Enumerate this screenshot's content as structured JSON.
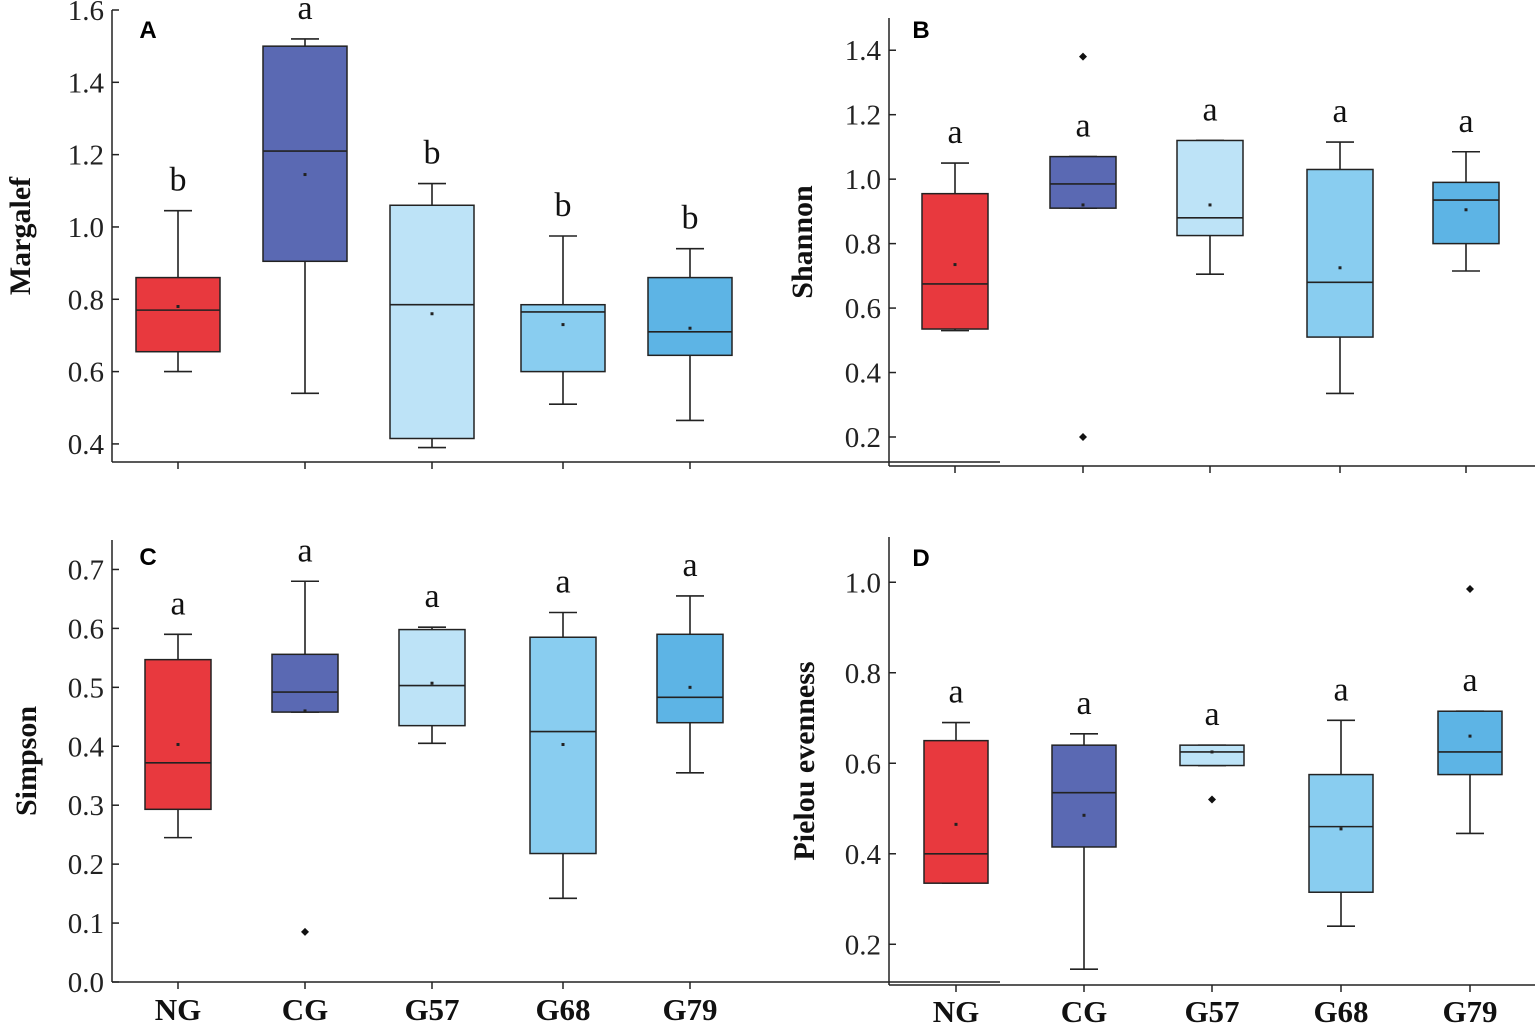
{
  "chart_data": [
    {
      "panel": "A",
      "type": "box",
      "ylabel": "Margalef",
      "ylim": [
        0.35,
        1.6
      ],
      "yticks": [
        "0.4",
        "0.6",
        "0.8",
        "1.0",
        "1.2",
        "1.4",
        "1.6"
      ],
      "categories": [
        "NG",
        "CG",
        "G57",
        "G68",
        "G79"
      ],
      "boxes": [
        {
          "group": "NG",
          "min": 0.6,
          "q1": 0.655,
          "median": 0.77,
          "q3": 0.86,
          "max": 1.045,
          "mean": 0.78,
          "outliers": [],
          "sig": "b"
        },
        {
          "group": "CG",
          "min": 0.54,
          "q1": 0.905,
          "median": 1.21,
          "q3": 1.5,
          "max": 1.52,
          "mean": 1.145,
          "outliers": [],
          "sig": "a"
        },
        {
          "group": "G57",
          "min": 0.39,
          "q1": 0.415,
          "median": 0.785,
          "q3": 1.06,
          "max": 1.12,
          "mean": 0.76,
          "outliers": [],
          "sig": "b"
        },
        {
          "group": "G68",
          "min": 0.51,
          "q1": 0.6,
          "median": 0.765,
          "q3": 0.785,
          "max": 0.975,
          "mean": 0.73,
          "outliers": [],
          "sig": "b"
        },
        {
          "group": "G79",
          "min": 0.465,
          "q1": 0.645,
          "median": 0.71,
          "q3": 0.86,
          "max": 0.94,
          "mean": 0.72,
          "outliers": [],
          "sig": "b"
        }
      ]
    },
    {
      "panel": "B",
      "type": "box",
      "ylabel": "Shannon",
      "ylim": [
        0.11,
        1.5
      ],
      "yticks": [
        "0.2",
        "0.4",
        "0.6",
        "0.8",
        "1.0",
        "1.2",
        "1.4"
      ],
      "categories": [
        "NG",
        "CG",
        "G57",
        "G68",
        "G79"
      ],
      "boxes": [
        {
          "group": "NG",
          "min": 0.53,
          "q1": 0.535,
          "median": 0.675,
          "q3": 0.955,
          "max": 1.05,
          "mean": 0.735,
          "outliers": [],
          "sig": "a"
        },
        {
          "group": "CG",
          "min": 0.91,
          "q1": 0.91,
          "median": 0.985,
          "q3": 1.07,
          "max": 1.07,
          "mean": 0.92,
          "outliers": [
            1.38,
            0.2
          ],
          "sig": "a"
        },
        {
          "group": "G57",
          "min": 0.705,
          "q1": 0.825,
          "median": 0.88,
          "q3": 1.12,
          "max": 1.12,
          "mean": 0.92,
          "outliers": [],
          "sig": "a"
        },
        {
          "group": "G68",
          "min": 0.335,
          "q1": 0.51,
          "median": 0.68,
          "q3": 1.03,
          "max": 1.115,
          "mean": 0.725,
          "outliers": [],
          "sig": "a"
        },
        {
          "group": "G79",
          "min": 0.715,
          "q1": 0.8,
          "median": 0.935,
          "q3": 0.99,
          "max": 1.085,
          "mean": 0.905,
          "outliers": [],
          "sig": "a"
        }
      ]
    },
    {
      "panel": "C",
      "type": "box",
      "ylabel": "Simpson",
      "ylim": [
        0.0,
        0.75
      ],
      "yticks": [
        "0.0",
        "0.1",
        "0.2",
        "0.3",
        "0.4",
        "0.5",
        "0.6",
        "0.7"
      ],
      "categories": [
        "NG",
        "CG",
        "G57",
        "G68",
        "G79"
      ],
      "boxes": [
        {
          "group": "NG",
          "min": 0.245,
          "q1": 0.293,
          "median": 0.372,
          "q3": 0.547,
          "max": 0.59,
          "mean": 0.403,
          "outliers": [],
          "sig": "a"
        },
        {
          "group": "CG",
          "min": 0.458,
          "q1": 0.458,
          "median": 0.492,
          "q3": 0.556,
          "max": 0.68,
          "mean": 0.46,
          "outliers": [
            0.085
          ],
          "sig": "a"
        },
        {
          "group": "G57",
          "min": 0.405,
          "q1": 0.435,
          "median": 0.503,
          "q3": 0.598,
          "max": 0.602,
          "mean": 0.507,
          "outliers": [],
          "sig": "a"
        },
        {
          "group": "G68",
          "min": 0.142,
          "q1": 0.218,
          "median": 0.425,
          "q3": 0.585,
          "max": 0.627,
          "mean": 0.403,
          "outliers": [],
          "sig": "a"
        },
        {
          "group": "G79",
          "min": 0.355,
          "q1": 0.44,
          "median": 0.483,
          "q3": 0.59,
          "max": 0.655,
          "mean": 0.5,
          "outliers": [],
          "sig": "a"
        }
      ]
    },
    {
      "panel": "D",
      "type": "box",
      "ylabel": "Pielou evenness",
      "ylim": [
        0.11,
        1.1
      ],
      "yticks": [
        "0.2",
        "0.4",
        "0.6",
        "0.8",
        "1.0"
      ],
      "categories": [
        "NG",
        "CG",
        "G57",
        "G68",
        "G79"
      ],
      "boxes": [
        {
          "group": "NG",
          "min": 0.335,
          "q1": 0.335,
          "median": 0.4,
          "q3": 0.65,
          "max": 0.69,
          "mean": 0.465,
          "outliers": [],
          "sig": "a"
        },
        {
          "group": "CG",
          "min": 0.145,
          "q1": 0.415,
          "median": 0.535,
          "q3": 0.64,
          "max": 0.665,
          "mean": 0.485,
          "outliers": [],
          "sig": "a"
        },
        {
          "group": "G57",
          "min": 0.595,
          "q1": 0.595,
          "median": 0.625,
          "q3": 0.64,
          "max": 0.64,
          "mean": 0.625,
          "outliers": [
            0.52
          ],
          "sig": "a"
        },
        {
          "group": "G68",
          "min": 0.24,
          "q1": 0.315,
          "median": 0.46,
          "q3": 0.575,
          "max": 0.695,
          "mean": 0.455,
          "outliers": [],
          "sig": "a"
        },
        {
          "group": "G79",
          "min": 0.445,
          "q1": 0.575,
          "median": 0.625,
          "q3": 0.715,
          "max": 0.715,
          "mean": 0.66,
          "outliers": [
            0.985
          ],
          "sig": "a"
        }
      ]
    }
  ],
  "colors": {
    "NG": "#e8393e",
    "CG": "#5a69b3",
    "G57": "#bde3f7",
    "G68": "#89cdf0",
    "G79": "#5db4e5",
    "axis": "#222222"
  }
}
